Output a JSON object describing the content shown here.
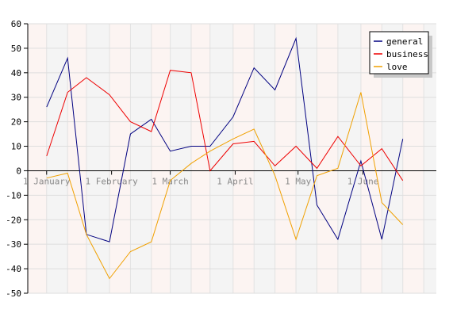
{
  "chart_data": {
    "type": "line",
    "title": "",
    "xlabel": "",
    "ylabel": "",
    "ylim": [
      -50,
      60
    ],
    "yticks": [
      60,
      50,
      40,
      30,
      20,
      10,
      0,
      -10,
      -20,
      -30,
      -40,
      -50
    ],
    "x_range": [
      "2010-12-23",
      "2011-07-06"
    ],
    "xticks": [
      {
        "label": "1 January",
        "date": "2011-01-01"
      },
      {
        "label": "1 February",
        "date": "2011-02-01"
      },
      {
        "label": "1 March",
        "date": "2011-03-01"
      },
      {
        "label": "1 April",
        "date": "2011-04-01"
      },
      {
        "label": "1 May",
        "date": "2011-05-01"
      },
      {
        "label": "1 June",
        "date": "2011-06-01"
      }
    ],
    "x": [
      "2011-01-01",
      "2011-01-11",
      "2011-01-20",
      "2011-01-31",
      "2011-02-10",
      "2011-02-20",
      "2011-03-01",
      "2011-03-11",
      "2011-03-20",
      "2011-03-31",
      "2011-04-10",
      "2011-04-20",
      "2011-04-30",
      "2011-05-10",
      "2011-05-20",
      "2011-05-31",
      "2011-06-10",
      "2011-06-20",
      "2011-06-30"
    ],
    "series": [
      {
        "name": "general",
        "color": "#000080",
        "values": [
          26,
          46,
          -26,
          -29,
          15,
          21,
          8,
          10,
          10,
          22,
          42,
          33,
          54,
          -14,
          -28,
          4,
          -28,
          13,
          null
        ]
      },
      {
        "name": "business",
        "color": "#ee0000",
        "values": [
          6,
          32,
          38,
          31,
          20,
          16,
          41,
          40,
          0,
          11,
          12,
          2,
          10,
          1,
          14,
          2,
          9,
          -4,
          null
        ]
      },
      {
        "name": "love",
        "color": "#f0a000",
        "values": [
          -3,
          -1,
          -26,
          -44,
          -33,
          -29,
          -4,
          3,
          8,
          13,
          17,
          -2,
          -28,
          -2,
          1,
          32,
          -13,
          -22,
          null
        ]
      }
    ],
    "grid": true,
    "legend_position": "top-right"
  }
}
